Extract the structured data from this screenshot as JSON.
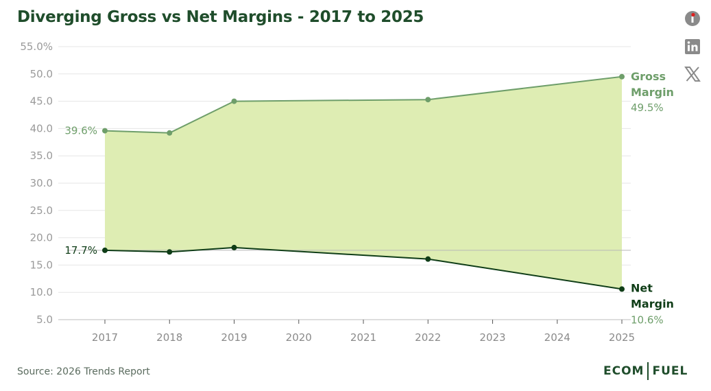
{
  "header": {
    "title": "Diverging Gross vs Net Margins - 2017 to 2025"
  },
  "social": [
    {
      "name": "facebook-icon",
      "color": "#8a8a8a",
      "accent": "#e02020"
    },
    {
      "name": "linkedin-icon",
      "color": "#8a8a8a"
    },
    {
      "name": "x-icon",
      "color": "#8a8a8a"
    }
  ],
  "footer": {
    "source": "Source: 2026 Trends Report"
  },
  "brand": {
    "left": "ECOM",
    "right": "FUEL"
  },
  "colors": {
    "gross": "#6e9e6a",
    "net": "#0f3d17",
    "fill": "#deedb3",
    "grid": "#e6e6e6",
    "axis": "#999999",
    "text": "#8a8a8a"
  },
  "chart_data": {
    "type": "area",
    "title": "Diverging Gross vs Net Margins - 2017 to 2025",
    "xlabel": "",
    "ylabel": "",
    "x": [
      2017,
      2018,
      2019,
      2020,
      2021,
      2022,
      2023,
      2024,
      2025
    ],
    "xlim": [
      2017,
      2025
    ],
    "ylim": [
      5,
      55
    ],
    "yticks": [
      "5.0",
      "10.0",
      "15.0",
      "20.0",
      "25.0",
      "30.0",
      "35.0",
      "40.0",
      "45.0",
      "50.0",
      "55.0%"
    ],
    "grid": true,
    "fill_between_series": true,
    "reference_line_y": 17.7,
    "series": [
      {
        "name": "Gross Margin",
        "name_lines": [
          "Gross",
          "Margin"
        ],
        "end_label": "49.5%",
        "start_label": "39.6%",
        "points": [
          [
            2017,
            39.6
          ],
          [
            2018,
            39.2
          ],
          [
            2019,
            45.0
          ],
          [
            2022,
            45.3
          ],
          [
            2025,
            49.5
          ]
        ]
      },
      {
        "name": "Net Margin",
        "name_lines": [
          "Net",
          "Margin"
        ],
        "end_label": "10.6%",
        "start_label": "17.7%",
        "points": [
          [
            2017,
            17.7
          ],
          [
            2018,
            17.4
          ],
          [
            2019,
            18.2
          ],
          [
            2022,
            16.1
          ],
          [
            2025,
            10.6
          ]
        ]
      }
    ]
  }
}
